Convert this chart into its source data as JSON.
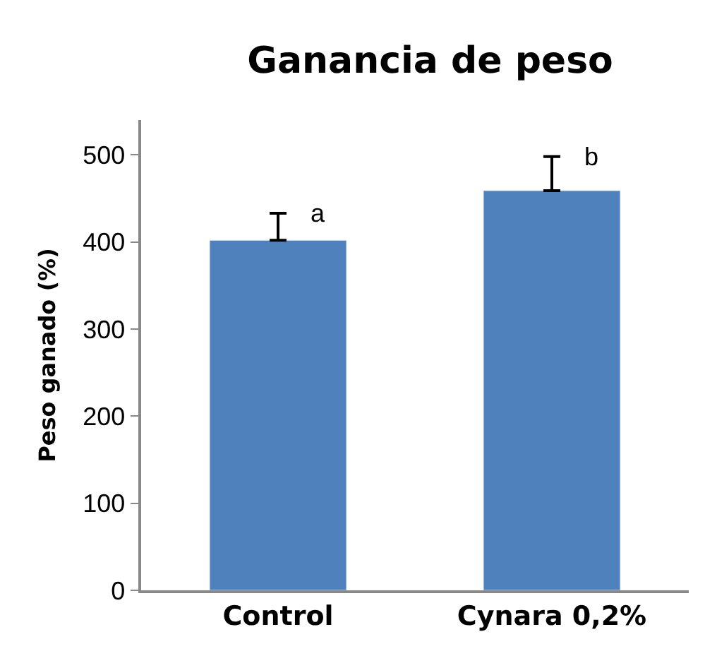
{
  "chart_data": {
    "type": "bar",
    "title": "Ganancia de peso",
    "ylabel": "Peso ganado (%)",
    "categories": [
      "Control",
      "Cynara 0,2%"
    ],
    "values": [
      402,
      459
    ],
    "errors": [
      [
        402,
        433
      ],
      [
        459,
        498
      ]
    ],
    "color": "#4f81bd",
    "ylim": [
      0,
      540
    ],
    "yticks": [
      0,
      100,
      200,
      300,
      400,
      500
    ],
    "legend": false,
    "annotations": [
      "a",
      "b"
    ]
  }
}
